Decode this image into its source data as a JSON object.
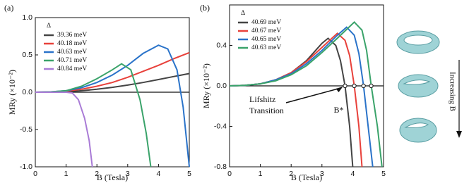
{
  "chart_data": [
    {
      "type": "line",
      "label": "(a)",
      "xlabel": "B (Tesla)",
      "ylabel": "MRy (×10⁻²)",
      "legend_title": "Δ",
      "xlim": [
        0,
        5
      ],
      "xticks": [
        0,
        1,
        2,
        3,
        4,
        5
      ],
      "ylim": [
        -1,
        1
      ],
      "yticks": [
        {
          "value": -1,
          "label": "-1.0"
        },
        {
          "value": -0.5,
          "label": "-0.5"
        },
        {
          "value": 0,
          "label": "0.0"
        },
        0.5,
        {
          "value": 1,
          "label": "1.0"
        }
      ],
      "series": [
        {
          "name": "39.36 meV",
          "color": "#444444",
          "x": [
            0,
            0.5,
            1,
            1.5,
            2,
            2.5,
            3,
            3.5,
            4,
            4.5,
            5
          ],
          "values": [
            0,
            0.001,
            0.006,
            0.02,
            0.04,
            0.065,
            0.095,
            0.13,
            0.17,
            0.21,
            0.25
          ]
        },
        {
          "name": "40.18 meV",
          "color": "#e8413b",
          "x": [
            0,
            0.5,
            1,
            1.5,
            2,
            2.5,
            3,
            3.5,
            4,
            4.5,
            5
          ],
          "values": [
            0,
            0.003,
            0.015,
            0.04,
            0.08,
            0.13,
            0.2,
            0.28,
            0.36,
            0.45,
            0.53
          ]
        },
        {
          "name": "40.63 meV",
          "color": "#2a73c9",
          "x": [
            0,
            0.5,
            1,
            1.5,
            2,
            2.5,
            3,
            3.5,
            4,
            4.3,
            4.6,
            4.8,
            5
          ],
          "values": [
            0,
            0.005,
            0.02,
            0.06,
            0.13,
            0.23,
            0.36,
            0.52,
            0.63,
            0.58,
            0.3,
            -0.2,
            -1
          ]
        },
        {
          "name": "40.71 meV",
          "color": "#3aa36a",
          "x": [
            0,
            0.5,
            1,
            1.5,
            2,
            2.5,
            2.8,
            3.1,
            3.4,
            3.6,
            3.75
          ],
          "values": [
            0,
            0.005,
            0.02,
            0.08,
            0.18,
            0.3,
            0.38,
            0.3,
            -0.1,
            -0.55,
            -1
          ]
        },
        {
          "name": "40.84 meV",
          "color": "#a97bd6",
          "x": [
            0,
            0.5,
            1,
            1.2,
            1.4,
            1.6,
            1.75,
            1.85
          ],
          "values": [
            0,
            0,
            0,
            -0.01,
            -0.1,
            -0.35,
            -0.65,
            -1
          ]
        }
      ]
    },
    {
      "type": "line",
      "label": "(b)",
      "xlabel": "B (Tesla)",
      "ylabel": "MRy (×10⁻²)",
      "legend_title": "Δ",
      "xlim": [
        0,
        5
      ],
      "xticks": [
        0,
        1,
        2,
        3,
        4,
        5
      ],
      "ylim": [
        -0.8,
        0.8
      ],
      "yticks": [
        {
          "value": -0.8,
          "label": "-0.8"
        },
        {
          "value": -0.4,
          "label": "-0.4"
        },
        {
          "value": 0,
          "label": "0.0"
        },
        0.4
      ],
      "annotation_lines": [
        "Lifshitz",
        "Transition"
      ],
      "annotation_point": "B*",
      "crossings": [
        3.75,
        4.05,
        4.35,
        4.6
      ],
      "series": [
        {
          "name": "40.69 meV",
          "color": "#444444",
          "x": [
            0,
            0.5,
            1,
            1.5,
            2,
            2.5,
            3,
            3.2,
            3.45,
            3.6,
            3.75,
            3.9,
            4
          ],
          "values": [
            0,
            0.005,
            0.02,
            0.06,
            0.13,
            0.25,
            0.42,
            0.47,
            0.4,
            0.25,
            0,
            -0.4,
            -0.8
          ]
        },
        {
          "name": "40.67 meV",
          "color": "#e8413b",
          "x": [
            0,
            0.5,
            1,
            1.5,
            2,
            2.5,
            3,
            3.5,
            3.75,
            3.9,
            4.05,
            4.2,
            4.3
          ],
          "values": [
            0,
            0.005,
            0.02,
            0.06,
            0.13,
            0.24,
            0.38,
            0.52,
            0.45,
            0.3,
            0,
            -0.4,
            -0.8
          ]
        },
        {
          "name": "40.65 meV",
          "color": "#2a73c9",
          "x": [
            0,
            0.5,
            1,
            1.5,
            2,
            2.5,
            3,
            3.5,
            3.8,
            4.05,
            4.2,
            4.35,
            4.5,
            4.65
          ],
          "values": [
            0,
            0.005,
            0.02,
            0.06,
            0.12,
            0.22,
            0.35,
            0.5,
            0.58,
            0.5,
            0.32,
            0,
            -0.4,
            -0.8
          ]
        },
        {
          "name": "40.63 meV",
          "color": "#3aa36a",
          "x": [
            0,
            0.5,
            1,
            1.5,
            2,
            2.5,
            3,
            3.5,
            4.05,
            4.3,
            4.45,
            4.6,
            4.8,
            4.95
          ],
          "values": [
            0,
            0.005,
            0.02,
            0.05,
            0.11,
            0.2,
            0.33,
            0.47,
            0.63,
            0.55,
            0.35,
            0,
            -0.4,
            -0.8
          ]
        }
      ]
    }
  ],
  "side_label": "Increasing B"
}
